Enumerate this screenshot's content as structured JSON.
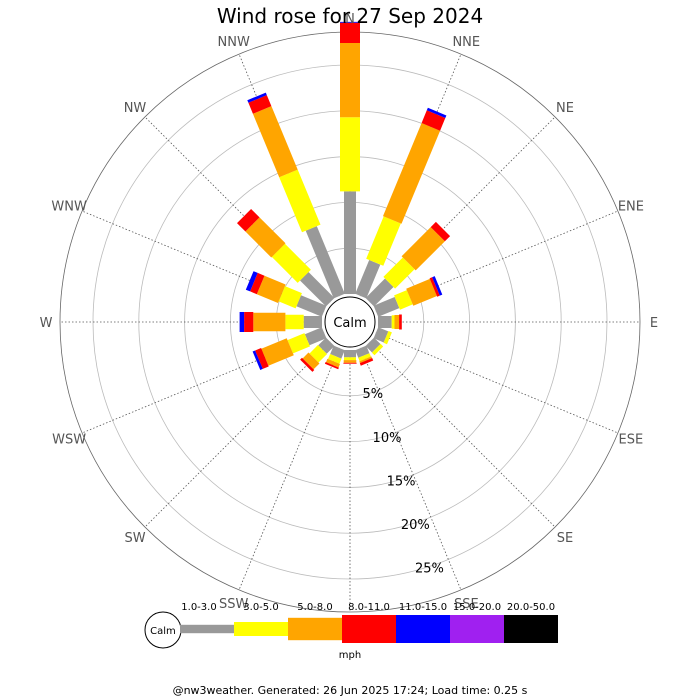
{
  "title": "Wind rose for 27 Sep 2024",
  "footer": "@nw3weather. Generated: 26 Jun 2025 17:24; Load time: 0.25 s",
  "chart_data": {
    "type": "wind-rose",
    "title": "Wind rose for 27 Sep 2024",
    "units": "mph",
    "calm_label": "Calm",
    "directions": [
      "N",
      "NNE",
      "NE",
      "ENE",
      "E",
      "ESE",
      "SE",
      "SSE",
      "S",
      "SSW",
      "SW",
      "WSW",
      "W",
      "WNW",
      "NW",
      "NNW"
    ],
    "radial_ticks": [
      {
        "value": 5,
        "label": "5%"
      },
      {
        "value": 10,
        "label": "10%"
      },
      {
        "value": 15,
        "label": "15%"
      },
      {
        "value": 20,
        "label": "20%"
      },
      {
        "value": 25,
        "label": "25%"
      }
    ],
    "rmax": 28.6,
    "speed_bins": [
      {
        "label": "1.0-3.0",
        "color": "#999999"
      },
      {
        "label": "3.0-5.0",
        "color": "#ffff00"
      },
      {
        "label": "5.0-8.0",
        "color": "#ffa500"
      },
      {
        "label": "8.0-11.0",
        "color": "#ff0000"
      },
      {
        "label": "11.0-15.0",
        "color": "#0000ff"
      },
      {
        "label": "15.0-20.0",
        "color": "#a020f0"
      },
      {
        "label": "20.0-50.0",
        "color": "#000000"
      }
    ],
    "cumulative_percent": {
      "N": [
        11.2,
        19.3,
        27.4,
        29.6,
        29.7
      ],
      "NNE": [
        4.0,
        9.0,
        20.0,
        21.5,
        21.8
      ],
      "NE": [
        3.0,
        6.0,
        10.5,
        11.3
      ],
      "ENE": [
        2.5,
        4.0,
        6.8,
        7.1,
        7.4
      ],
      "E": [
        1.5,
        1.8,
        2.3,
        2.6
      ],
      "ESE": [
        1.2,
        1.6
      ],
      "SE": [
        1.0,
        1.4
      ],
      "SSE": [
        0.9,
        1.3,
        1.5,
        1.8
      ],
      "S": [
        0.8,
        1.1,
        1.4,
        1.5
      ],
      "SSW": [
        1.0,
        1.6,
        2.0,
        2.2
      ],
      "SW": [
        1.2,
        2.5,
        3.4,
        3.7
      ],
      "WSW": [
        2.0,
        4.0,
        7.0,
        7.7,
        8.0
      ],
      "W": [
        2.0,
        4.0,
        7.5,
        8.5,
        9.0
      ],
      "WNW": [
        3.0,
        5.0,
        7.5,
        8.3,
        8.8
      ],
      "NW": [
        4.0,
        8.0,
        12.0,
        13.3
      ],
      "NNW": [
        8.0,
        14.5,
        22.0,
        23.3,
        23.6
      ]
    }
  }
}
